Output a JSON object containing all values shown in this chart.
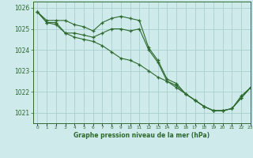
{
  "title": "Graphe pression niveau de la mer (hPa)",
  "background_color": "#ceeaea",
  "grid_color": "#aacece",
  "line_color": "#2d6a2d",
  "marker_color": "#2d6a2d",
  "hours": [
    0,
    1,
    2,
    3,
    4,
    5,
    6,
    7,
    8,
    9,
    10,
    11,
    12,
    13,
    14,
    15,
    16,
    17,
    18,
    19,
    20,
    21,
    22,
    23
  ],
  "series1": [
    1025.8,
    1025.4,
    1025.4,
    1025.4,
    1025.2,
    1025.1,
    1024.9,
    1025.3,
    1025.5,
    1025.6,
    1025.5,
    1025.4,
    1024.1,
    1023.5,
    1022.6,
    1022.4,
    1021.9,
    1021.6,
    1021.3,
    1021.1,
    1021.1,
    1021.2,
    1021.7,
    1022.2
  ],
  "series2": [
    1025.8,
    1025.3,
    1025.3,
    1024.8,
    1024.8,
    1024.7,
    1024.6,
    1024.8,
    1025.0,
    1025.0,
    1024.9,
    1025.0,
    1024.0,
    1023.4,
    1022.5,
    1022.3,
    1021.9,
    1021.6,
    1021.3,
    1021.1,
    1021.1,
    1021.2,
    1021.8,
    1022.2
  ],
  "series3": [
    1025.8,
    1025.3,
    1025.2,
    1024.8,
    1024.6,
    1024.5,
    1024.4,
    1024.2,
    1023.9,
    1023.6,
    1023.5,
    1023.3,
    1023.0,
    1022.7,
    1022.5,
    1022.2,
    1021.9,
    1021.6,
    1021.3,
    1021.1,
    1021.1,
    1021.2,
    1021.7,
    1022.2
  ],
  "ylim_min": 1020.5,
  "ylim_max": 1026.3,
  "yticks": [
    1021,
    1022,
    1023,
    1024,
    1025,
    1026
  ],
  "xlim_min": -0.5,
  "xlim_max": 23
}
